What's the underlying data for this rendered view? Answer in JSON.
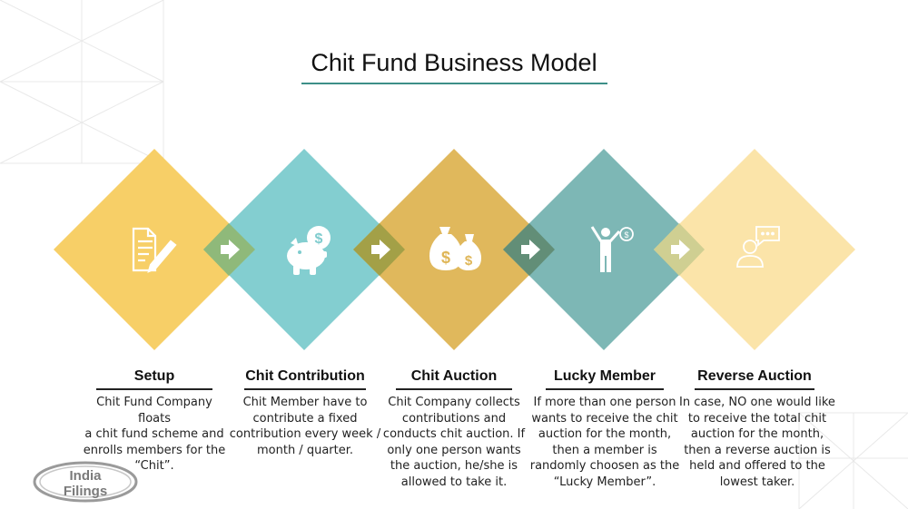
{
  "title": "Chit Fund Business Model",
  "colors": {
    "setup": "#f7cd62",
    "contribution": "#7fccce",
    "auction": "#dfb657",
    "lucky": "#79b5b3",
    "reverse": "#fbe3a6",
    "title_rule": "#3d8f88"
  },
  "steps": [
    {
      "title": "Setup",
      "icon": "document-pen-icon",
      "text": [
        "Chit Fund Company floats",
        "a chit fund scheme and",
        "enrolls members for the",
        "“Chit”."
      ]
    },
    {
      "title": "Chit Contribution",
      "icon": "piggy-bank-icon",
      "text": [
        "Chit Member have to",
        "contribute a fixed",
        "contribution every week /",
        "month / quarter."
      ]
    },
    {
      "title": "Chit Auction",
      "icon": "money-bags-icon",
      "text": [
        "Chit Company collects",
        "contributions and",
        "conducts chit auction. If",
        "only one person wants",
        "the auction, he/she is",
        "allowed to take it."
      ]
    },
    {
      "title": "Lucky Member",
      "icon": "winner-person-icon",
      "text": [
        "If more than one person",
        "wants to receive the chit",
        "auction for the month,",
        "then a member is",
        "randomly choosen as the",
        "“Lucky Member”."
      ]
    },
    {
      "title": "Reverse Auction",
      "icon": "person-speech-icon",
      "text": [
        "In case, NO one would like",
        "to receive the total chit",
        "auction for  the month,",
        "then a reverse auction is",
        "held and offered to the",
        "lowest taker."
      ]
    }
  ],
  "logo": {
    "line1": "India",
    "line2": "Filings"
  }
}
